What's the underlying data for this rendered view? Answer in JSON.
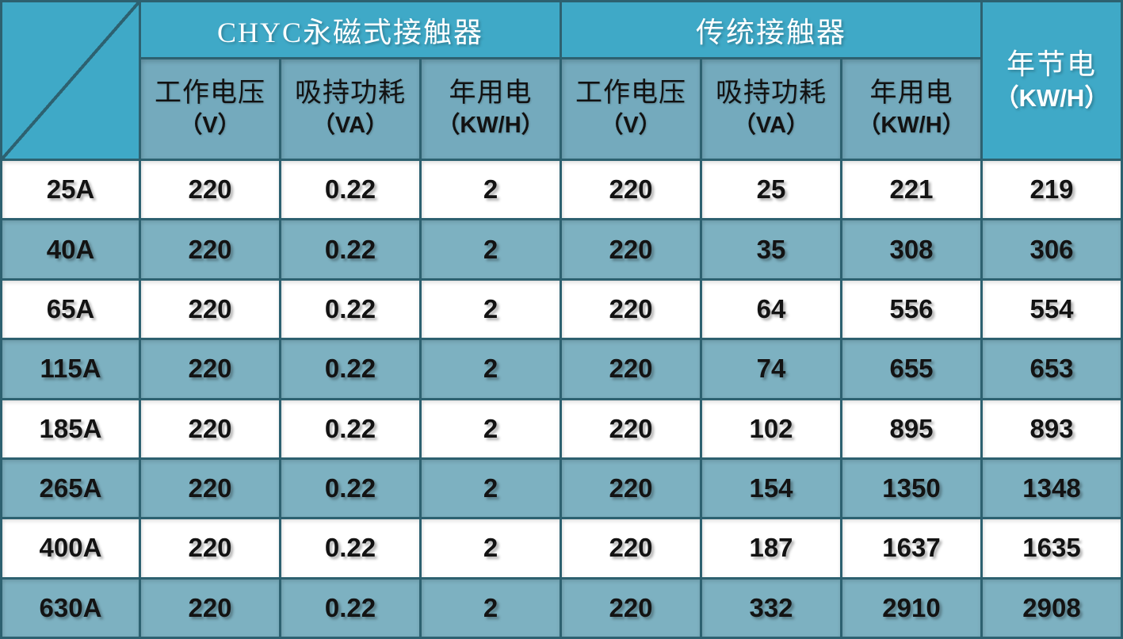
{
  "chart_data": {
    "type": "table",
    "group_headers": [
      {
        "label": "CHYC永磁式接触器",
        "colspan": 3
      },
      {
        "label": "传统接触器",
        "colspan": 3
      }
    ],
    "sub_headers": [
      {
        "name": "工作电压",
        "unit": "（V）"
      },
      {
        "name": "吸持功耗",
        "unit": "（VA）"
      },
      {
        "name": "年用电",
        "unit": "（KW/H）"
      },
      {
        "name": "工作电压",
        "unit": "（V）"
      },
      {
        "name": "吸持功耗",
        "unit": "（VA）"
      },
      {
        "name": "年用电",
        "unit": "（KW/H）"
      }
    ],
    "annual_saving_header": {
      "name": "年节电",
      "unit": "（KW/H）"
    },
    "rows": [
      {
        "model": "25A",
        "values": [
          "220",
          "0.22",
          "2",
          "220",
          "25",
          "221",
          "219"
        ]
      },
      {
        "model": "40A",
        "values": [
          "220",
          "0.22",
          "2",
          "220",
          "35",
          "308",
          "306"
        ]
      },
      {
        "model": "65A",
        "values": [
          "220",
          "0.22",
          "2",
          "220",
          "64",
          "556",
          "554"
        ]
      },
      {
        "model": "115A",
        "values": [
          "220",
          "0.22",
          "2",
          "220",
          "74",
          "655",
          "653"
        ]
      },
      {
        "model": "185A",
        "values": [
          "220",
          "0.22",
          "2",
          "220",
          "102",
          "895",
          "893"
        ]
      },
      {
        "model": "265A",
        "values": [
          "220",
          "0.22",
          "2",
          "220",
          "154",
          "1350",
          "1348"
        ]
      },
      {
        "model": "400A",
        "values": [
          "220",
          "0.22",
          "2",
          "220",
          "187",
          "1637",
          "1635"
        ]
      },
      {
        "model": "630A",
        "values": [
          "220",
          "0.22",
          "2",
          "220",
          "332",
          "2910",
          "2908"
        ]
      }
    ]
  },
  "colors": {
    "header_teal": "#3fa9c7",
    "subheader_teal": "#74aabd",
    "row_teal": "#7db1c1",
    "row_white": "#ffffff",
    "border_dark_teal": "#2d6170",
    "header_text": "#ffffff",
    "body_text": "#131313"
  }
}
